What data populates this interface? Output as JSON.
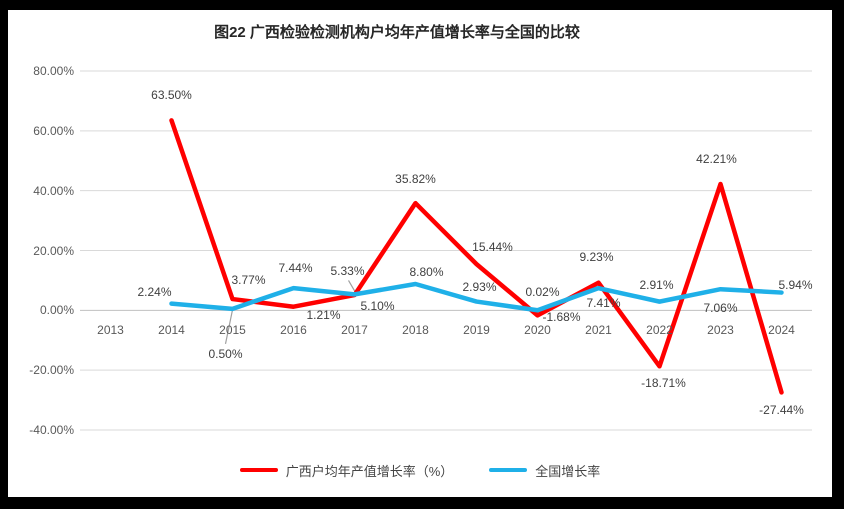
{
  "title": "图22 广西检验检测机构户均年产值增长率与全国的比较",
  "colors": {
    "page_background": "#000000",
    "panel_background": "#ffffff",
    "gridline": "#d9d9d9",
    "axis_line": "#c0c0c0",
    "tick_text": "#595959",
    "data_label_text": "#3f3f3f",
    "leader_line": "#a0a0a0",
    "series_guangxi": "#ff0000",
    "series_national": "#1fb0e8"
  },
  "chart_data": {
    "type": "line",
    "title": "图22 广西检验检测机构户均年产值增长率与全国的比较",
    "categories": [
      "2013",
      "2014",
      "2015",
      "2016",
      "2017",
      "2018",
      "2019",
      "2020",
      "2021",
      "2022",
      "2023",
      "2024"
    ],
    "ylim": [
      -40,
      80
    ],
    "grid": true,
    "legend_position": "bottom",
    "yticks": [
      {
        "value": 80,
        "label": "80.00%"
      },
      {
        "value": 60,
        "label": "60.00%"
      },
      {
        "value": 40,
        "label": "40.00%"
      },
      {
        "value": 20,
        "label": "20.00%"
      },
      {
        "value": 0,
        "label": "0.00%"
      },
      {
        "value": -20,
        "label": "-20.00%"
      },
      {
        "value": -40,
        "label": "-40.00%"
      }
    ],
    "series": [
      {
        "name": "广西户均年产值增长率（%）",
        "color": "#ff0000",
        "points": [
          {
            "category": "2013",
            "value": null
          },
          {
            "category": "2014",
            "value": 63.5,
            "label": "63.50%",
            "dx": 0,
            "dy": -25
          },
          {
            "category": "2015",
            "value": 3.77,
            "label": "3.77%",
            "dx": 16,
            "dy": -19
          },
          {
            "category": "2016",
            "value": 1.21,
            "label": "1.21%",
            "dx": 30,
            "dy": 8
          },
          {
            "category": "2017",
            "value": 5.1,
            "label": "5.10%",
            "dx": 23,
            "dy": 11
          },
          {
            "category": "2018",
            "value": 35.82,
            "label": "35.82%",
            "dx": 0,
            "dy": -24
          },
          {
            "category": "2019",
            "value": 15.44,
            "label": "15.44%",
            "dx": 16,
            "dy": -17
          },
          {
            "category": "2020",
            "value": -1.68,
            "label": "-1.68%",
            "dx": 24,
            "dy": 2
          },
          {
            "category": "2021",
            "value": 9.23,
            "label": "9.23%",
            "dx": -2,
            "dy": -26
          },
          {
            "category": "2022",
            "value": -18.71,
            "label": "-18.71%",
            "dx": 4,
            "dy": 17
          },
          {
            "category": "2023",
            "value": 42.21,
            "label": "42.21%",
            "dx": -4,
            "dy": -25
          },
          {
            "category": "2024",
            "value": -27.44,
            "label": "-27.44%",
            "dx": 0,
            "dy": 18
          }
        ]
      },
      {
        "name": "全国增长率",
        "color": "#1fb0e8",
        "points": [
          {
            "category": "2013",
            "value": null
          },
          {
            "category": "2014",
            "value": 2.24,
            "label": "2.24%",
            "dx": -17,
            "dy": -12
          },
          {
            "category": "2015",
            "value": 0.5,
            "label": "0.50%",
            "dx": -7,
            "dy": 45
          },
          {
            "category": "2016",
            "value": 7.44,
            "label": "7.44%",
            "dx": 2,
            "dy": -20
          },
          {
            "category": "2017",
            "value": 5.33,
            "label": "5.33%",
            "dx": -7,
            "dy": -23
          },
          {
            "category": "2018",
            "value": 8.8,
            "label": "8.80%",
            "dx": 11,
            "dy": -12
          },
          {
            "category": "2019",
            "value": 2.93,
            "label": "2.93%",
            "dx": 3,
            "dy": -15
          },
          {
            "category": "2020",
            "value": 0.02,
            "label": "0.02%",
            "dx": 5,
            "dy": -18
          },
          {
            "category": "2021",
            "value": 7.41,
            "label": "7.41%",
            "dx": 5,
            "dy": 15
          },
          {
            "category": "2022",
            "value": 2.91,
            "label": "2.91%",
            "dx": -3,
            "dy": -17
          },
          {
            "category": "2023",
            "value": 7.06,
            "label": "7.06%",
            "dx": 0,
            "dy": 19
          },
          {
            "category": "2024",
            "value": 5.94,
            "label": "5.94%",
            "dx": 14,
            "dy": -8
          }
        ]
      }
    ],
    "leader_lines": [
      {
        "series": 1,
        "point": 2,
        "segment": [
          0,
          1,
          -7,
          35
        ]
      },
      {
        "series": 1,
        "point": 4,
        "segment": [
          -6,
          -14,
          1,
          -2
        ]
      }
    ]
  }
}
